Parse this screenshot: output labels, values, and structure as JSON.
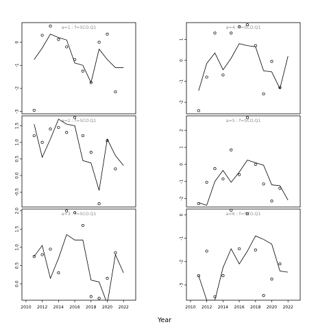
{
  "chart_data": {
    "type": "line",
    "xlabel": "Year",
    "panels": [
      {
        "strip_label": "a=1 : f=SCO.Q1",
        "ylim": [
          -3.1,
          0.85
        ],
        "yticks": [
          0,
          -1,
          -2,
          -3
        ],
        "xticks": [],
        "line": {
          "x": [
            2011,
            2012,
            2013,
            2014,
            2015,
            2016,
            2017,
            2018,
            2019,
            2020,
            2021,
            2022
          ],
          "y": [
            -0.75,
            -0.25,
            0.35,
            0.2,
            0.1,
            -0.9,
            -1.0,
            -1.75,
            -0.3,
            -0.75,
            -1.1,
            -1.1
          ]
        },
        "points": {
          "x": [
            2011,
            2012,
            2013,
            2014,
            2015,
            2016,
            2017,
            2018,
            2019,
            2020,
            2021
          ],
          "y": [
            -2.95,
            0.3,
            0.7,
            0.12,
            -0.2,
            -0.75,
            -1.25,
            -1.75,
            0.0,
            0.35,
            -2.15
          ]
        }
      },
      {
        "strip_label": "a=4 : f=SCO.Q1",
        "ylim": [
          -2.55,
          1.8
        ],
        "yticks": [
          1,
          0,
          -1,
          -2
        ],
        "xticks": [],
        "line": {
          "x": [
            2011,
            2012,
            2013,
            2014,
            2015,
            2016,
            2017,
            2018,
            2019,
            2020,
            2021,
            2022
          ],
          "y": [
            -1.45,
            -0.15,
            0.35,
            -0.45,
            0.1,
            0.8,
            0.7,
            0.65,
            -0.5,
            -0.55,
            -1.35,
            0.2
          ]
        },
        "points": {
          "x": [
            2011,
            2012,
            2013,
            2014,
            2015,
            2016,
            2017,
            2018,
            2019,
            2020,
            2021
          ],
          "y": [
            -2.4,
            -0.8,
            1.3,
            -0.7,
            1.3,
            1.6,
            1.7,
            0.7,
            -1.6,
            -0.05,
            -1.3
          ]
        }
      },
      {
        "strip_label": "a=2 : f=SCO.Q1",
        "ylim": [
          -0.95,
          1.8
        ],
        "yticks": [
          1.5,
          1.0,
          0.5,
          0.0,
          -0.5
        ],
        "xticks": [],
        "line": {
          "x": [
            2011,
            2012,
            2013,
            2014,
            2015,
            2016,
            2017,
            2018,
            2019,
            2020,
            2021,
            2022
          ],
          "y": [
            1.55,
            0.55,
            1.1,
            1.7,
            1.55,
            1.5,
            0.45,
            0.38,
            -0.45,
            1.1,
            0.6,
            0.3
          ]
        },
        "points": {
          "x": [
            2011,
            2012,
            2013,
            2014,
            2015,
            2016,
            2017,
            2018,
            2019,
            2020,
            2021
          ],
          "y": [
            1.2,
            1.0,
            1.4,
            1.45,
            1.3,
            1.75,
            1.2,
            0.7,
            -0.85,
            1.05,
            0.2
          ]
        }
      },
      {
        "strip_label": "a=5 : f=SCO.Q1",
        "ylim": [
          -2.5,
          2.85
        ],
        "yticks": [
          2,
          1,
          0,
          -1,
          -2
        ],
        "xticks": [],
        "line": {
          "x": [
            2011,
            2012,
            2013,
            2014,
            2015,
            2016,
            2017,
            2018,
            2019,
            2020,
            2021,
            2022
          ],
          "y": [
            -2.25,
            -2.4,
            -1.0,
            -0.35,
            -1.05,
            -0.45,
            0.25,
            0.1,
            -0.05,
            -1.2,
            -1.25,
            -2.1
          ]
        },
        "points": {
          "x": [
            2011,
            2012,
            2013,
            2014,
            2015,
            2016,
            2017,
            2018,
            2019,
            2020,
            2021
          ],
          "y": [
            -2.3,
            -1.05,
            -0.25,
            -0.85,
            0.85,
            -0.6,
            2.75,
            0.0,
            -1.15,
            -2.15,
            -1.4
          ]
        }
      },
      {
        "strip_label": "a=3 : f=SCO.Q1",
        "ylim": [
          -0.45,
          2.05
        ],
        "yticks": [
          2.0,
          1.5,
          1.0,
          0.5,
          0.0
        ],
        "xticks": [
          2010,
          2012,
          2014,
          2016,
          2018,
          2020,
          2022
        ],
        "line": {
          "x": [
            2011,
            2012,
            2013,
            2014,
            2015,
            2016,
            2017,
            2018,
            2019,
            2020,
            2021,
            2022
          ],
          "y": [
            0.75,
            1.05,
            0.15,
            0.7,
            1.35,
            1.2,
            1.2,
            0.1,
            0.05,
            -0.55,
            0.8,
            0.3
          ]
        },
        "points": {
          "x": [
            2011,
            2012,
            2013,
            2014,
            2015,
            2016,
            2017,
            2018,
            2019,
            2020,
            2021
          ],
          "y": [
            0.75,
            0.8,
            0.95,
            0.3,
            2.0,
            1.95,
            1.6,
            -0.35,
            -0.4,
            0.15,
            0.85
          ]
        }
      },
      {
        "strip_label": "a=6 : f=SCO.Q1",
        "ylim": [
          -3.65,
          0.25
        ],
        "yticks": [
          0,
          -1,
          -2,
          -3
        ],
        "xticks": [
          2010,
          2012,
          2014,
          2016,
          2018,
          2020,
          2022
        ],
        "line": {
          "x": [
            2011,
            2012,
            2013,
            2014,
            2015,
            2016,
            2017,
            2018,
            2019,
            2020,
            2021,
            2022
          ],
          "y": [
            -2.6,
            -3.65,
            -3.65,
            -2.25,
            -1.45,
            -2.1,
            -1.55,
            -0.9,
            -1.05,
            -1.25,
            -2.4,
            -2.45
          ]
        },
        "points": {
          "x": [
            2011,
            2012,
            2013,
            2014,
            2015,
            2016,
            2017,
            2018,
            2019,
            2020,
            2021
          ],
          "y": [
            -2.6,
            -1.55,
            -3.5,
            -2.6,
            0.2,
            -1.45,
            0.05,
            -1.5,
            -3.45,
            -2.75,
            -2.1
          ]
        }
      }
    ]
  }
}
